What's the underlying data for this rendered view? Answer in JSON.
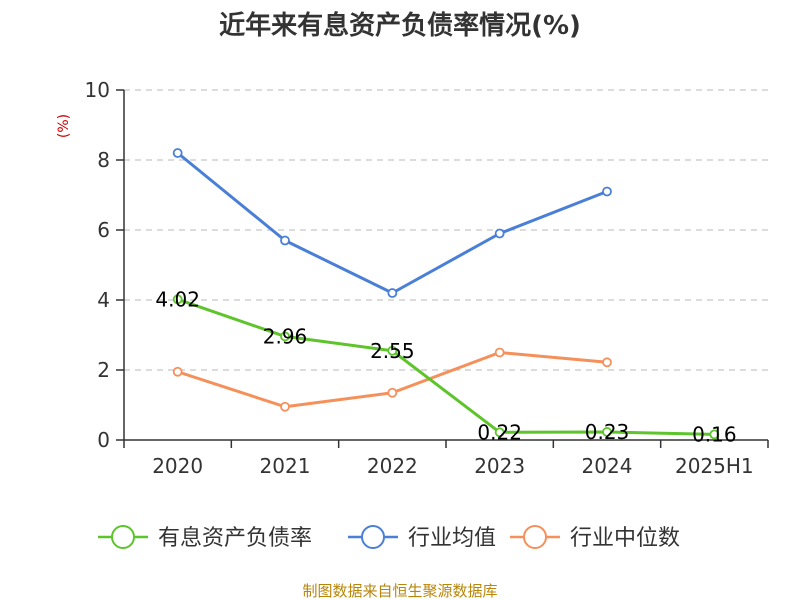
{
  "chart_data": {
    "type": "line",
    "title": "近年来有息资产负债率情况(%)",
    "unit": "(%)",
    "categories": [
      "2020",
      "2021",
      "2022",
      "2023",
      "2024",
      "2025H1"
    ],
    "ylim": [
      0,
      10
    ],
    "yticks": [
      "0",
      "2",
      "4",
      "6",
      "8",
      "10"
    ],
    "grid": true,
    "legend_position": "bottom",
    "series": [
      {
        "name": "有息资产负债率",
        "color": "#5ec42b",
        "values": [
          4.02,
          2.96,
          2.55,
          0.22,
          0.23,
          0.16
        ],
        "labels": [
          "4.02",
          "2.96",
          "2.55",
          "0.22",
          "0.23",
          "0.16"
        ]
      },
      {
        "name": "行业均值",
        "color": "#4a7fd8",
        "values": [
          8.2,
          5.7,
          4.2,
          5.9,
          7.1,
          null
        ]
      },
      {
        "name": "行业中位数",
        "color": "#f5905a",
        "values": [
          1.95,
          0.95,
          1.35,
          2.5,
          2.22,
          null
        ]
      }
    ]
  },
  "footer": {
    "source": "制图数据来自恒生聚源数据库"
  }
}
